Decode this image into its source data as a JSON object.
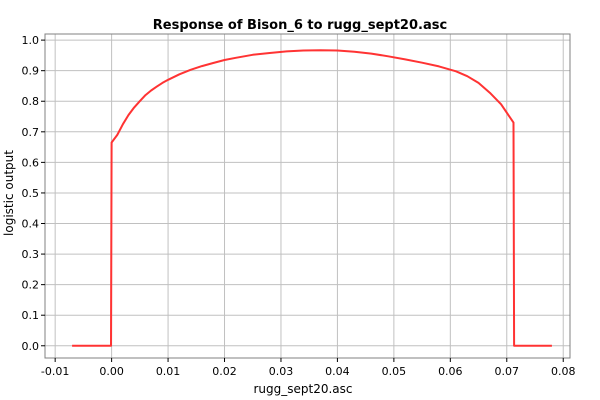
{
  "chart_data": {
    "type": "line",
    "title": "Response of Bison_6 to rugg_sept20.asc",
    "xlabel": "rugg_sept20.asc",
    "ylabel": "logistic output",
    "xlim": [
      -0.0118,
      0.0812
    ],
    "ylim": [
      -0.04,
      1.02
    ],
    "grid": true,
    "x_ticks": [
      -0.01,
      0.0,
      0.01,
      0.02,
      0.03,
      0.04,
      0.05,
      0.06,
      0.07,
      0.08
    ],
    "x_tick_labels": [
      "-0.01",
      "0.00",
      "0.01",
      "0.02",
      "0.03",
      "0.04",
      "0.05",
      "0.06",
      "0.07",
      "0.08"
    ],
    "y_ticks": [
      0.0,
      0.1,
      0.2,
      0.3,
      0.4,
      0.5,
      0.6,
      0.7,
      0.8,
      0.9,
      1.0
    ],
    "y_tick_labels": [
      "0.0",
      "0.1",
      "0.2",
      "0.3",
      "0.4",
      "0.5",
      "0.6",
      "0.7",
      "0.8",
      "0.9",
      "1.0"
    ],
    "series": [
      {
        "color": "#ff3333",
        "points": [
          [
            -0.007,
            0.0
          ],
          [
            -0.0001,
            0.0
          ],
          [
            0.0,
            0.665
          ],
          [
            0.001,
            0.69
          ],
          [
            0.002,
            0.725
          ],
          [
            0.003,
            0.755
          ],
          [
            0.004,
            0.78
          ],
          [
            0.005,
            0.8
          ],
          [
            0.006,
            0.82
          ],
          [
            0.007,
            0.835
          ],
          [
            0.008,
            0.848
          ],
          [
            0.009,
            0.86
          ],
          [
            0.01,
            0.87
          ],
          [
            0.012,
            0.888
          ],
          [
            0.014,
            0.903
          ],
          [
            0.016,
            0.915
          ],
          [
            0.018,
            0.925
          ],
          [
            0.02,
            0.935
          ],
          [
            0.022,
            0.942
          ],
          [
            0.025,
            0.952
          ],
          [
            0.028,
            0.958
          ],
          [
            0.031,
            0.963
          ],
          [
            0.034,
            0.966
          ],
          [
            0.037,
            0.967
          ],
          [
            0.04,
            0.966
          ],
          [
            0.043,
            0.962
          ],
          [
            0.046,
            0.956
          ],
          [
            0.049,
            0.947
          ],
          [
            0.052,
            0.937
          ],
          [
            0.055,
            0.926
          ],
          [
            0.058,
            0.914
          ],
          [
            0.061,
            0.898
          ],
          [
            0.063,
            0.882
          ],
          [
            0.065,
            0.86
          ],
          [
            0.067,
            0.828
          ],
          [
            0.069,
            0.79
          ],
          [
            0.0712,
            0.73
          ],
          [
            0.0713,
            0.0
          ],
          [
            0.078,
            0.0
          ]
        ]
      }
    ]
  }
}
